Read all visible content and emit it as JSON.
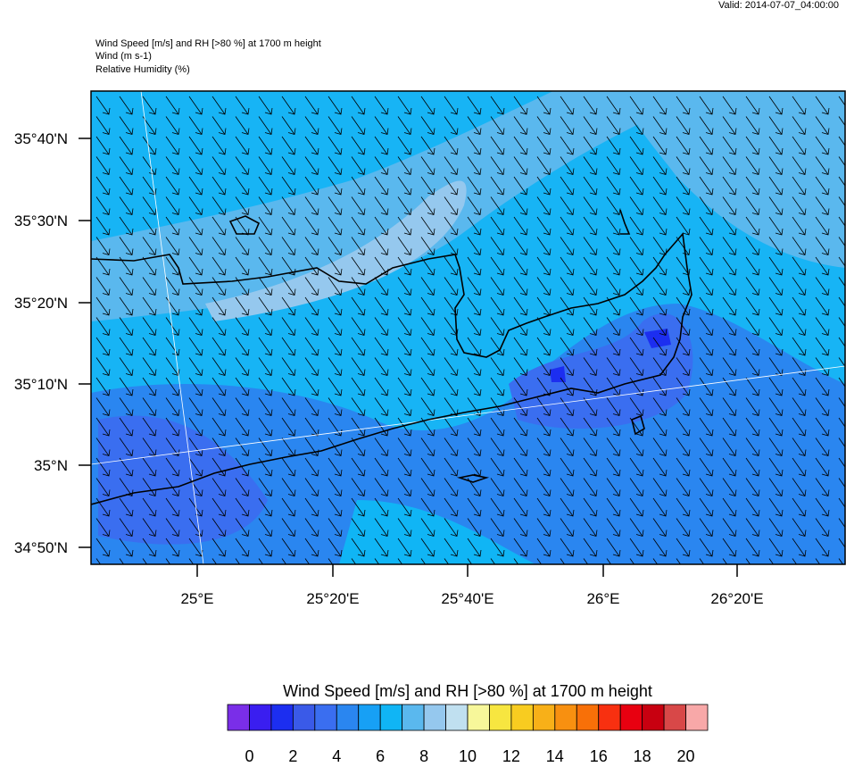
{
  "valid": "Valid: 2014-07-07_04:00:00",
  "header": {
    "title": "Wind Speed [m/s] and RH [>80 %] at 1700 m height",
    "wind": "Wind   (m s-1)",
    "rh": "Relative Humidity   (%)"
  },
  "lat_labels": [
    "35°40'N",
    "35°30'N",
    "35°20'N",
    "35°10'N",
    "35°N",
    "34°50'N"
  ],
  "lon_labels": [
    "25°E",
    "25°20'E",
    "25°40'E",
    "26°E",
    "26°20'E"
  ],
  "colorbar": {
    "title": "Wind Speed [m/s] and RH [>80 %] at 1700 m height",
    "colors": [
      "#7a2ee8",
      "#3a1ef0",
      "#1c2ef0",
      "#3a5ae8",
      "#3a6ef0",
      "#2a86f0",
      "#17a0f5",
      "#10b5f5",
      "#5ab8ee",
      "#95c8ee",
      "#c0e0f0",
      "#f7f79a",
      "#f7e640",
      "#f8cc20",
      "#f8b018",
      "#f89010",
      "#f87008",
      "#f83010",
      "#e80010",
      "#c80010",
      "#d84848",
      "#f8a8a8"
    ],
    "labels": [
      "0",
      "2",
      "4",
      "6",
      "8",
      "10",
      "12",
      "14",
      "16",
      "18",
      "20"
    ]
  }
}
